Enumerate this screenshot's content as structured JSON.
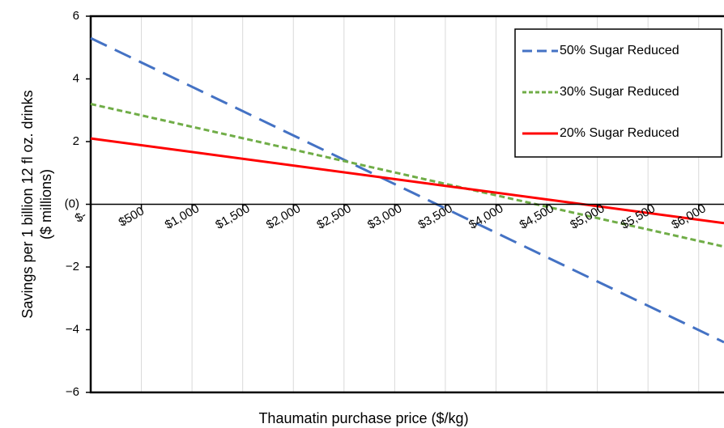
{
  "chart_data": {
    "type": "line",
    "title": "",
    "xlabel": "Thaumatin purchase price ($/kg)",
    "ylabel_line1": "Savings per 1 billion 12 fl oz. drinks",
    "ylabel_line2": "($ millions)",
    "xlim": [
      0,
      6250
    ],
    "ylim": [
      -6,
      6
    ],
    "x_tick_values": [
      0,
      500,
      1000,
      1500,
      2000,
      2500,
      3000,
      3500,
      4000,
      4500,
      5000,
      5500,
      6000
    ],
    "x_tick_labels": [
      "$-",
      "$500",
      "$1,000",
      "$1,500",
      "$2,000",
      "$2,500",
      "$3,000",
      "$3,500",
      "$4,000",
      "$4,500",
      "$5,000",
      "$5,500",
      "$6,000"
    ],
    "y_tick_values": [
      6,
      4,
      2,
      0,
      -2,
      -4,
      -6
    ],
    "y_tick_labels": [
      "6",
      "4",
      "2",
      "(0)",
      "−2",
      "−4",
      "−6"
    ],
    "grid": "vertical",
    "legend_position": "top-right",
    "series": [
      {
        "name": "50% Sugar Reduced",
        "color": "#4472C4",
        "dash": "dashed",
        "x": [
          0,
          6250
        ],
        "y": [
          5.3,
          -4.4
        ]
      },
      {
        "name": "30% Sugar Reduced",
        "color": "#70AD47",
        "dash": "dotted",
        "x": [
          0,
          6250
        ],
        "y": [
          3.2,
          -1.35
        ]
      },
      {
        "name": "20% Sugar Reduced",
        "color": "#FF0000",
        "dash": "solid",
        "x": [
          0,
          6250
        ],
        "y": [
          2.1,
          -0.6
        ]
      }
    ]
  }
}
